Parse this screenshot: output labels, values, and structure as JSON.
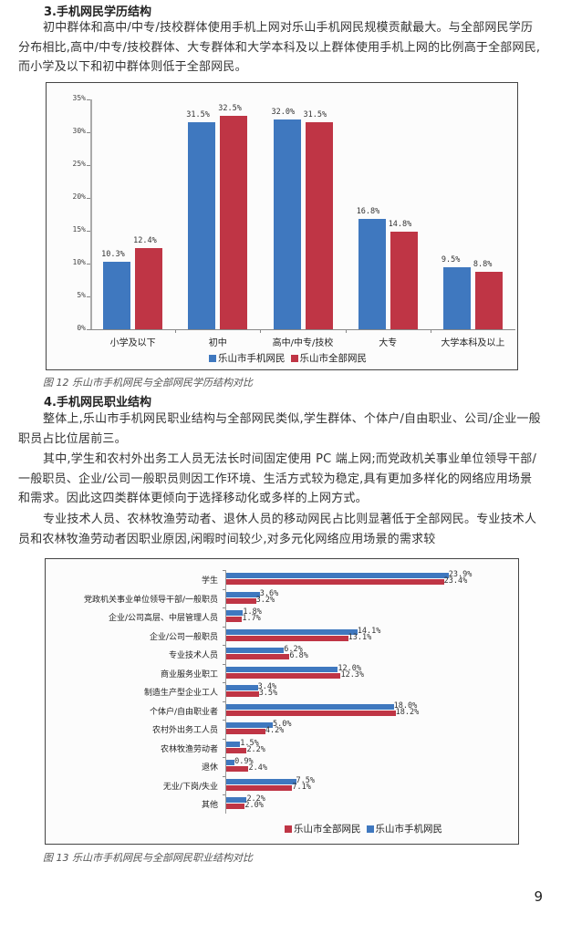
{
  "section3": {
    "heading": "3.手机网民学历结构",
    "paragraph": "初中群体和高中/中专/技校群体使用手机上网对乐山手机网民规模贡献最大。与全部网民学历分布相比,高中/中专/技校群体、大专群体和大学本科及以上群体使用手机上网的比例高于全部网民,而小学及以下和初中群体则低于全部网民。"
  },
  "figure12": {
    "caption": "图 12  乐山市手机网民与全部网民学历结构对比"
  },
  "section4": {
    "heading": "4.手机网民职业结构",
    "paragraphs": [
      "整体上,乐山市手机网民职业结构与全部网民类似,学生群体、个体户/自由职业、公司/企业一般职员占比位居前三。",
      "其中,学生和农村外出务工人员无法长时间固定使用 PC 端上网;而党政机关事业单位领导干部/一般职员、企业/公司一般职员则因工作环境、生活方式较为稳定,具有更加多样化的网络应用场景和需求。因此这四类群体更倾向于选择移动化或多样的上网方式。",
      "专业技术人员、农林牧渔劳动者、退休人员的移动网民占比则显著低于全部网民。专业技术人员和农林牧渔劳动者因职业原因,闲暇时间较少,对多元化网络应用场景的需求较"
    ]
  },
  "figure13": {
    "caption": "图 13  乐山市手机网民与全部网民职业结构对比"
  },
  "page_number": "9",
  "colors": {
    "mobile": "#3f78bf",
    "all": "#bf3545"
  },
  "chart_data": [
    {
      "type": "bar",
      "title": "乐山市手机网民与全部网民学历结构对比",
      "categories": [
        "小学及以下",
        "初中",
        "高中/中专/技校",
        "大专",
        "大学本科及以上"
      ],
      "series": [
        {
          "name": "乐山市手机网民",
          "values": [
            10.3,
            31.5,
            32.0,
            16.8,
            9.5
          ],
          "labels": [
            "10.3%",
            "31.5%",
            "32.0%",
            "16.8%",
            "9.5%"
          ]
        },
        {
          "name": "乐山市全部网民",
          "values": [
            12.4,
            32.5,
            31.5,
            14.8,
            8.8
          ],
          "labels": [
            "12.4%",
            "32.5%",
            "31.5%",
            "14.8%",
            "8.8%"
          ]
        }
      ],
      "yticks": [
        "0%",
        "5%",
        "10%",
        "15%",
        "20%",
        "25%",
        "30%",
        "35%"
      ],
      "ylim": [
        0,
        35
      ],
      "xlabel": "",
      "ylabel": "",
      "legend": [
        "乐山市手机网民",
        "乐山市全部网民"
      ],
      "legend_position": "bottom",
      "grid": false
    },
    {
      "type": "bar",
      "orientation": "horizontal",
      "title": "乐山市手机网民与全部网民职业结构对比",
      "categories": [
        "学生",
        "党政机关事业单位领导干部/一般职员",
        "企业/公司高层、中层管理人员",
        "企业/公司一般职员",
        "专业技术人员",
        "商业服务业职工",
        "制造生产型企业工人",
        "个体户/自由职业者",
        "农村外出务工人员",
        "农林牧渔劳动者",
        "退休",
        "无业/下岗/失业",
        "其他"
      ],
      "series": [
        {
          "name": "乐山市手机网民",
          "values": [
            23.9,
            3.6,
            1.8,
            14.1,
            6.2,
            12.0,
            3.4,
            18.0,
            5.0,
            1.5,
            0.9,
            7.5,
            2.2
          ],
          "labels": [
            "23.9%",
            "3.6%",
            "1.8%",
            "14.1%",
            "6.2%",
            "12.0%",
            "3.4%",
            "18.0%",
            "5.0%",
            "1.5%",
            "0.9%",
            "7.5%",
            "2.2%"
          ]
        },
        {
          "name": "乐山市全部网民",
          "values": [
            23.4,
            3.2,
            1.7,
            13.1,
            6.8,
            12.3,
            3.5,
            18.2,
            4.2,
            2.2,
            2.4,
            7.1,
            2.0
          ],
          "labels": [
            "23.4%",
            "3.2%",
            "1.7%",
            "13.1%",
            "6.8%",
            "12.3%",
            "3.5%",
            "18.2%",
            "4.2%",
            "2.2%",
            "2.4%",
            "7.1%",
            "2.0%"
          ]
        }
      ],
      "legend": [
        "乐山市全部网民",
        "乐山市手机网民"
      ],
      "legend_position": "bottom-right",
      "grid": false
    }
  ]
}
